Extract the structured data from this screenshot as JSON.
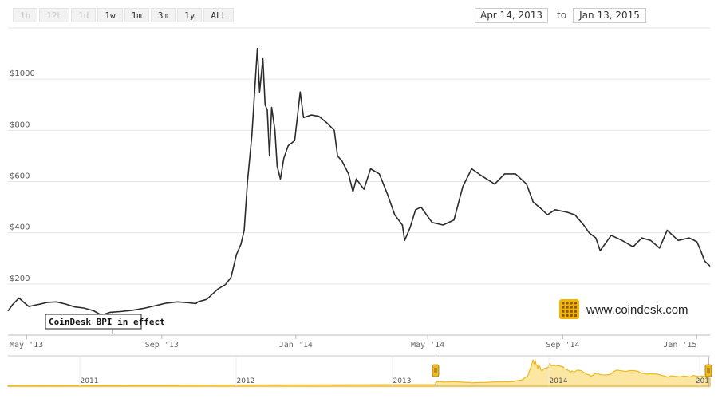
{
  "zoom_buttons": [
    {
      "label": "1h",
      "enabled": false
    },
    {
      "label": "12h",
      "enabled": false
    },
    {
      "label": "1d",
      "enabled": false
    },
    {
      "label": "1w",
      "enabled": true
    },
    {
      "label": "1m",
      "enabled": true
    },
    {
      "label": "3m",
      "enabled": true
    },
    {
      "label": "1y",
      "enabled": true
    },
    {
      "label": "ALL",
      "enabled": true
    }
  ],
  "range": {
    "from": "Apr 14, 2013",
    "to_label": "to",
    "to": "Jan 13, 2015"
  },
  "brand": {
    "text": "www.coindesk.com",
    "logo": "coindesk-logo-icon",
    "color": "#f4b400"
  },
  "colors": {
    "line": "#2b2b2b",
    "navigator_fill": "#fbe6a2",
    "navigator_line": "#f0b81c",
    "grid": "#e6e6e6"
  },
  "annotation": {
    "text": "CoinDesk BPI in effect",
    "date": "2013-07-18"
  },
  "chart_data": {
    "type": "line",
    "title": "",
    "xlabel": "",
    "ylabel": "",
    "x_range": [
      "2013-04-14",
      "2015-01-13"
    ],
    "ylim": [
      0,
      1200
    ],
    "y_ticks": [
      200,
      400,
      600,
      800,
      1000
    ],
    "y_tick_labels": [
      "$200",
      "$400",
      "$600",
      "$800",
      "$1000"
    ],
    "x_ticks": [
      {
        "date": "2013-05-01",
        "label": "May '13"
      },
      {
        "date": "2013-09-01",
        "label": "Sep '13"
      },
      {
        "date": "2014-01-01",
        "label": "Jan '14"
      },
      {
        "date": "2014-05-01",
        "label": "May '14"
      },
      {
        "date": "2014-09-01",
        "label": "Sep '14"
      },
      {
        "date": "2015-01-01",
        "label": "Jan '15"
      }
    ],
    "grid": true,
    "series": [
      {
        "x": [
          "2013-04-14",
          "2013-04-18",
          "2013-04-24",
          "2013-04-29",
          "2013-05-03",
          "2013-05-08",
          "2013-05-13",
          "2013-05-20",
          "2013-05-28",
          "2013-06-05",
          "2013-06-14",
          "2013-06-22",
          "2013-07-01",
          "2013-07-08",
          "2013-07-16",
          "2013-07-25",
          "2013-08-05",
          "2013-08-15",
          "2013-08-26",
          "2013-09-05",
          "2013-09-15",
          "2013-09-25",
          "2013-10-02",
          "2013-10-04",
          "2013-10-12",
          "2013-10-22",
          "2013-10-29",
          "2013-11-03",
          "2013-11-08",
          "2013-11-12",
          "2013-11-15",
          "2013-11-18",
          "2013-11-22",
          "2013-11-27",
          "2013-11-29",
          "2013-12-02",
          "2013-12-04",
          "2013-12-06",
          "2013-12-08",
          "2013-12-10",
          "2013-12-13",
          "2013-12-15",
          "2013-12-18",
          "2013-12-21",
          "2013-12-25",
          "2013-12-31",
          "2014-01-05",
          "2014-01-08",
          "2014-01-15",
          "2014-01-22",
          "2014-01-29",
          "2014-02-05",
          "2014-02-08",
          "2014-02-12",
          "2014-02-18",
          "2014-02-22",
          "2014-02-25",
          "2014-03-04",
          "2014-03-10",
          "2014-03-18",
          "2014-03-25",
          "2014-04-01",
          "2014-04-08",
          "2014-04-10",
          "2014-04-15",
          "2014-04-20",
          "2014-04-25",
          "2014-05-05",
          "2014-05-15",
          "2014-05-25",
          "2014-06-02",
          "2014-06-10",
          "2014-06-20",
          "2014-07-01",
          "2014-07-10",
          "2014-07-20",
          "2014-07-30",
          "2014-08-05",
          "2014-08-12",
          "2014-08-18",
          "2014-08-25",
          "2014-09-05",
          "2014-09-12",
          "2014-09-20",
          "2014-09-25",
          "2014-10-01",
          "2014-10-05",
          "2014-10-15",
          "2014-10-25",
          "2014-11-04",
          "2014-11-12",
          "2014-11-20",
          "2014-11-28",
          "2014-12-05",
          "2014-12-15",
          "2014-12-25",
          "2015-01-01",
          "2015-01-05",
          "2015-01-08",
          "2015-01-13"
        ],
        "y": [
          94,
          118,
          145,
          126,
          112,
          117,
          121,
          128,
          130,
          122,
          110,
          106,
          95,
          78,
          89,
          92,
          97,
          104,
          115,
          125,
          130,
          127,
          123,
          130,
          140,
          180,
          198,
          226,
          315,
          355,
          410,
          600,
          780,
          1120,
          950,
          1080,
          900,
          880,
          700,
          890,
          800,
          660,
          610,
          690,
          740,
          760,
          950,
          850,
          860,
          855,
          830,
          800,
          700,
          680,
          630,
          560,
          610,
          570,
          650,
          630,
          555,
          470,
          430,
          370,
          420,
          490,
          500,
          440,
          430,
          450,
          580,
          650,
          620,
          590,
          630,
          630,
          590,
          520,
          495,
          470,
          490,
          480,
          470,
          430,
          400,
          380,
          330,
          390,
          370,
          345,
          380,
          370,
          340,
          410,
          370,
          380,
          365,
          325,
          290,
          270
        ]
      }
    ]
  },
  "navigator": {
    "year_labels": [
      "2011",
      "2012",
      "2013",
      "2014",
      "201"
    ],
    "description": "overview of full price history with selected range handles"
  }
}
